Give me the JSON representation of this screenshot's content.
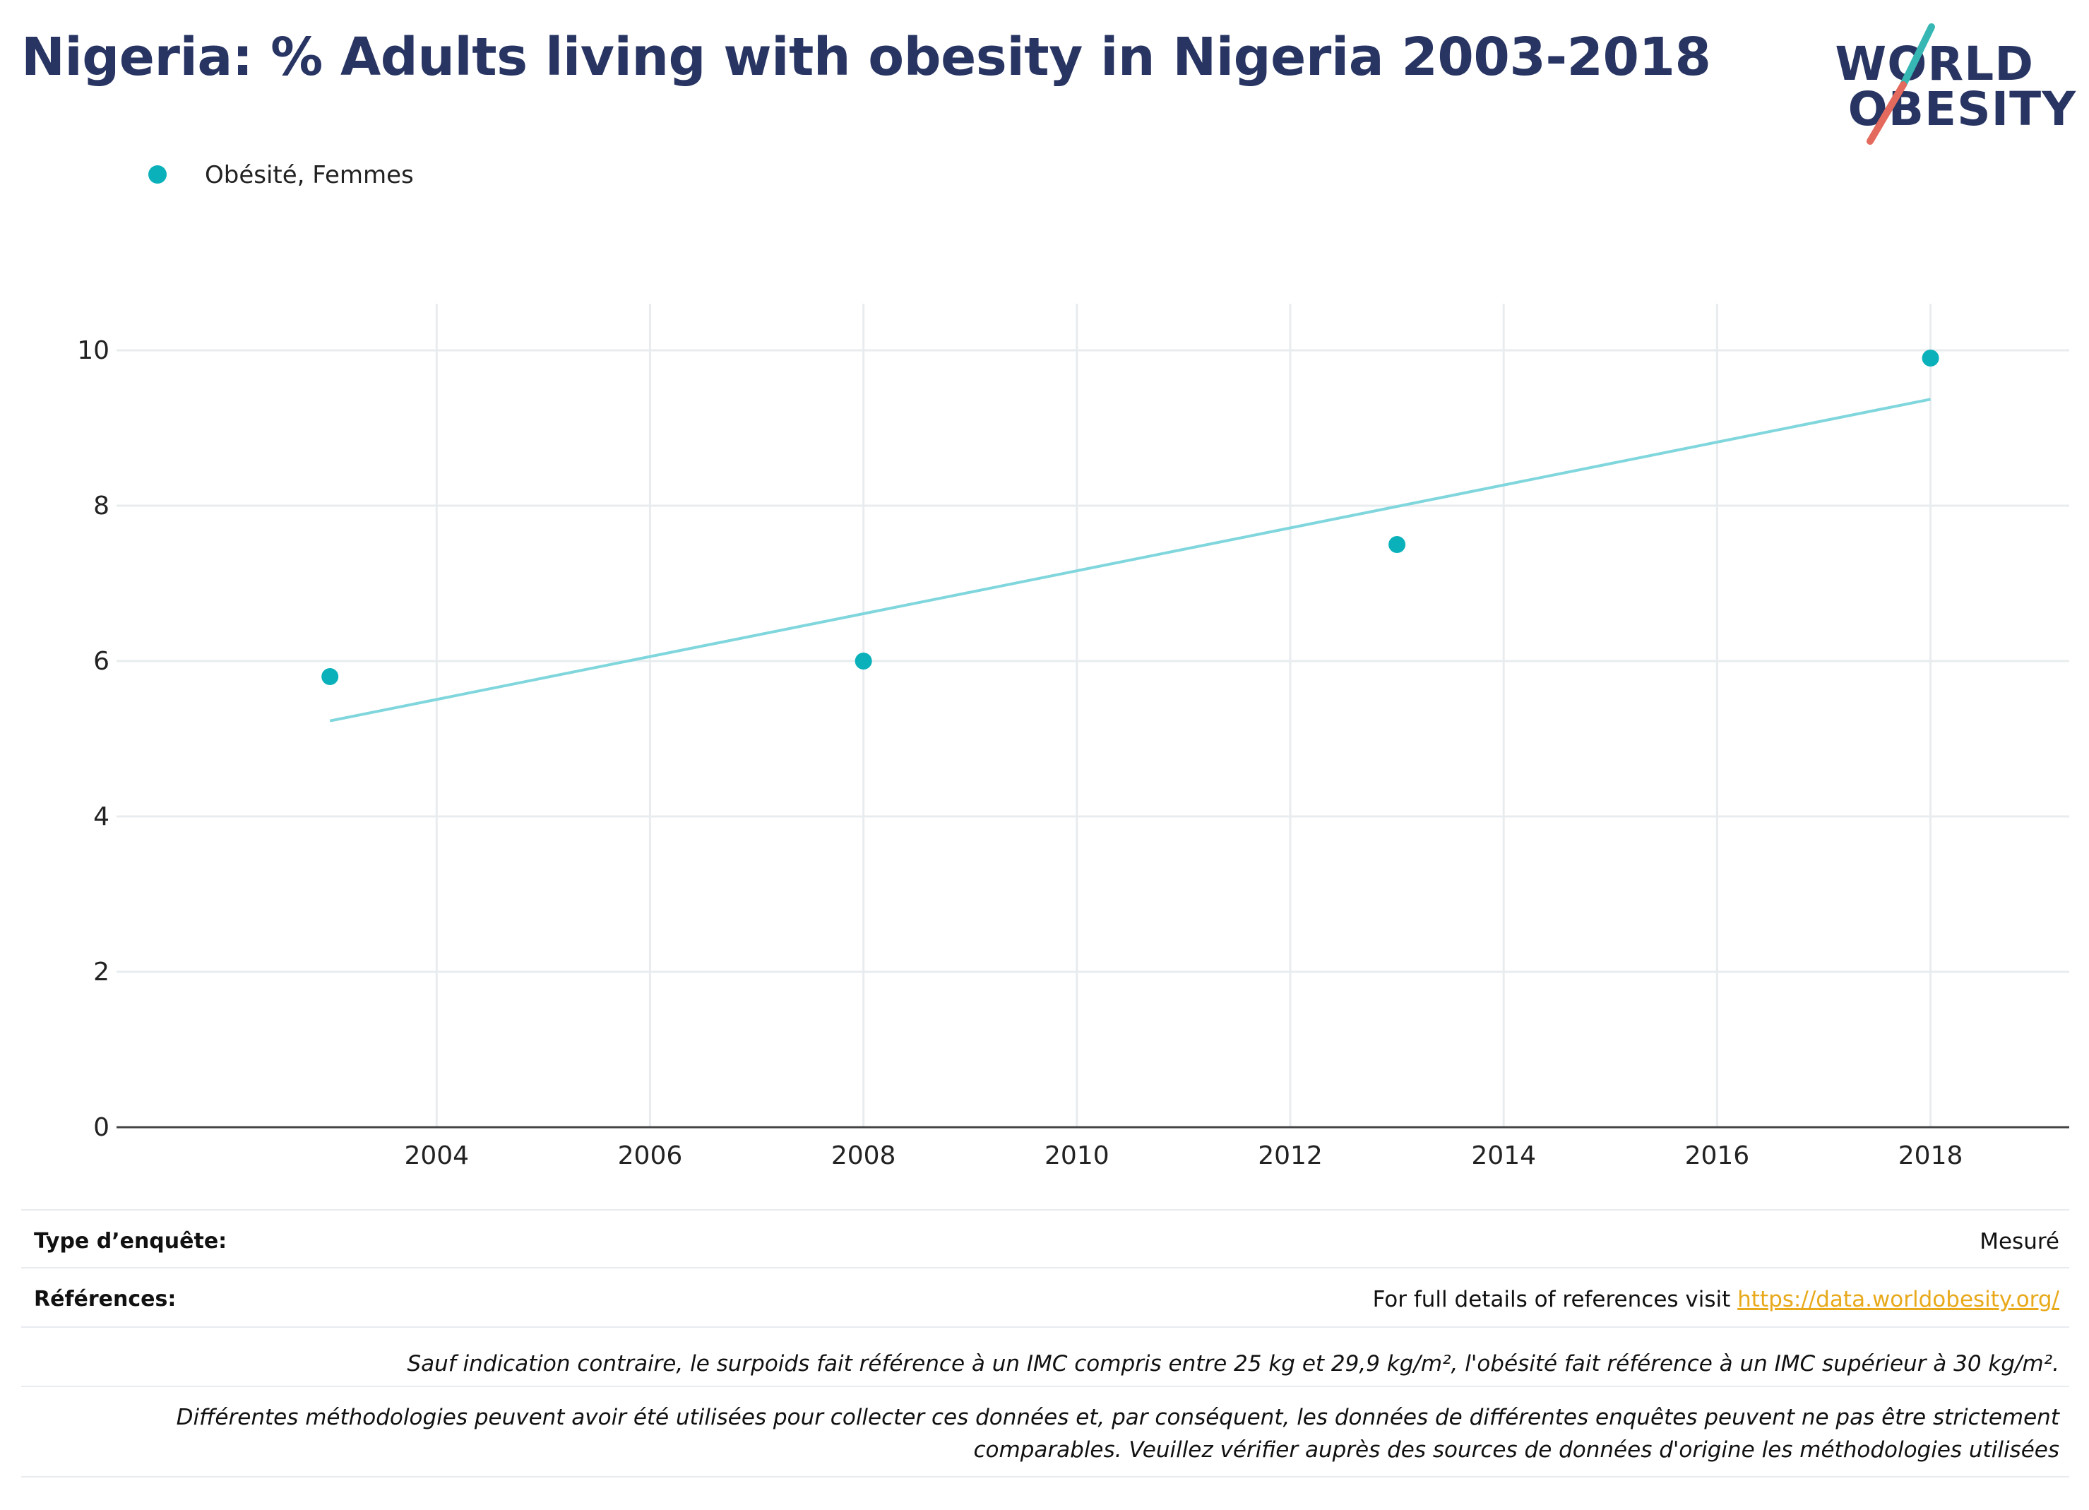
{
  "title": "Nigeria: % Adults living with obesity in Nigeria 2003-2018",
  "logo": {
    "line1": "WORLD",
    "line2": "OBESITY",
    "accent_teal": "#36b7b4",
    "accent_coral": "#e36a5d"
  },
  "colors": {
    "series": "#0bb1ba",
    "trend": "#7fd6dc",
    "title": "#283462",
    "link": "#e8a91b"
  },
  "chart_data": {
    "type": "scatter",
    "series": [
      {
        "name": "Obésité, Femmes",
        "x": [
          2003,
          2008,
          2013,
          2018
        ],
        "values": [
          5.8,
          6.0,
          7.5,
          9.9
        ]
      }
    ],
    "trendline": {
      "x": [
        2003,
        2018
      ],
      "values": [
        5.23,
        9.37
      ]
    },
    "xlim": [
      2001,
      2019.3
    ],
    "ylim": [
      0,
      10.6
    ],
    "x_ticks": [
      "2004",
      "2006",
      "2008",
      "2010",
      "2012",
      "2014",
      "2016",
      "2018"
    ],
    "y_ticks": [
      "0",
      "2",
      "4",
      "6",
      "8",
      "10"
    ],
    "grid": true,
    "legend_position": "top-left"
  },
  "footer": {
    "survey_type_label": "Type d’enquête:",
    "survey_type_value": "Mesuré",
    "references_label": "Références:",
    "references_text": "For full details of references visit ",
    "references_link": "https://data.worldobesity.org/",
    "note_bmi": "Sauf indication contraire, le surpoids fait référence à un IMC compris entre 25 kg et 29,9 kg/m², l'obésité fait référence à un IMC supérieur à 30 kg/m².",
    "note_methods_1": "Différentes méthodologies peuvent avoir été utilisées pour collecter ces données et, par conséquent, les données de différentes enquêtes peuvent ne pas être strictement",
    "note_methods_2": "comparables. Veuillez vérifier auprès des sources de données d'origine les méthodologies utilisées"
  }
}
